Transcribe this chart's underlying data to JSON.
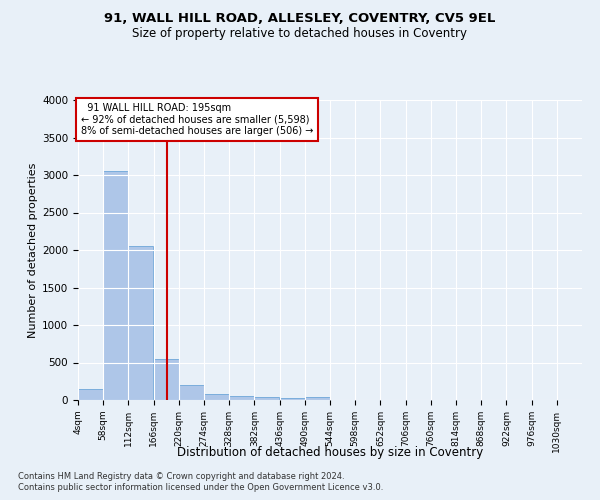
{
  "title_line1": "91, WALL HILL ROAD, ALLESLEY, COVENTRY, CV5 9EL",
  "title_line2": "Size of property relative to detached houses in Coventry",
  "xlabel": "Distribution of detached houses by size in Coventry",
  "ylabel": "Number of detached properties",
  "annotation_line1": "  91 WALL HILL ROAD: 195sqm  ",
  "annotation_line2": "← 92% of detached houses are smaller (5,598)",
  "annotation_line3": "8% of semi-detached houses are larger (506) →",
  "property_size": 195,
  "bin_edges": [
    4,
    58,
    112,
    166,
    220,
    274,
    328,
    382,
    436,
    490,
    544,
    598,
    652,
    706,
    760,
    814,
    868,
    922,
    976,
    1030,
    1084
  ],
  "bar_heights": [
    150,
    3050,
    2050,
    550,
    200,
    80,
    60,
    40,
    30,
    35,
    0,
    0,
    0,
    0,
    0,
    0,
    0,
    0,
    0,
    0
  ],
  "bar_color": "#aec6e8",
  "bar_edge_color": "#5b9bd5",
  "vline_color": "#cc0000",
  "annotation_box_edge_color": "#cc0000",
  "background_color": "#e8f0f8",
  "grid_color": "#ffffff",
  "ylim": [
    0,
    4000
  ],
  "yticks": [
    0,
    500,
    1000,
    1500,
    2000,
    2500,
    3000,
    3500,
    4000
  ],
  "footnote_line1": "Contains HM Land Registry data © Crown copyright and database right 2024.",
  "footnote_line2": "Contains public sector information licensed under the Open Government Licence v3.0."
}
